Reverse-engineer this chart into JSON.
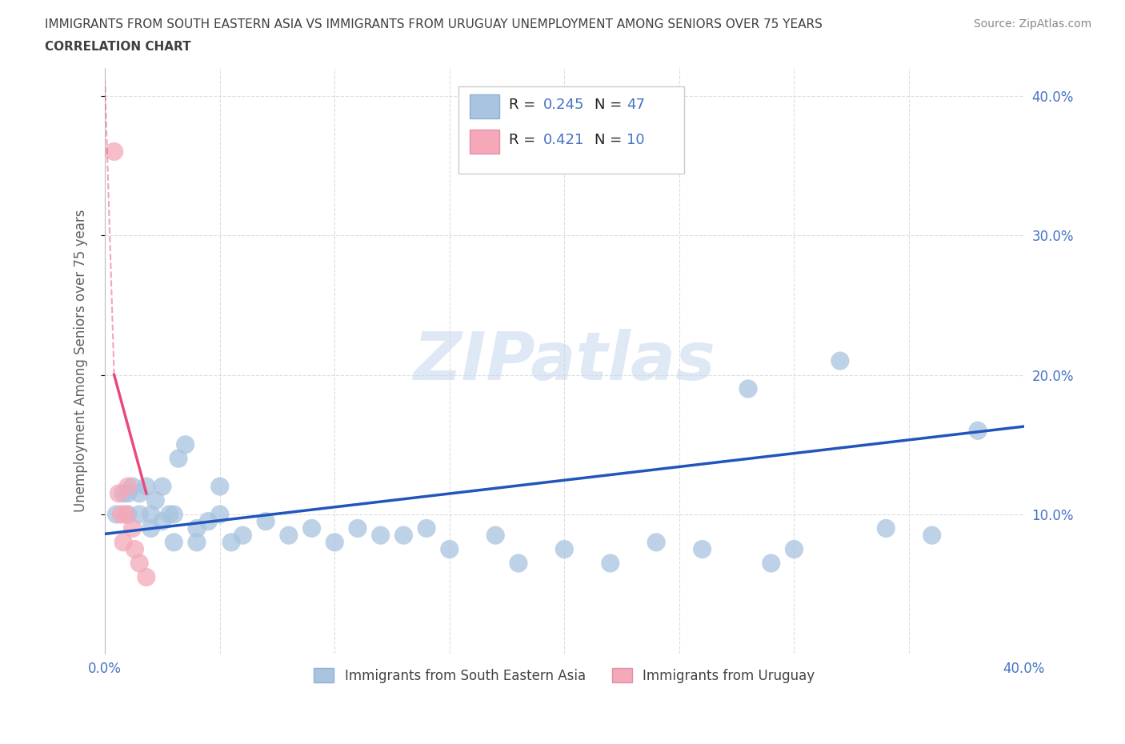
{
  "title_line1": "IMMIGRANTS FROM SOUTH EASTERN ASIA VS IMMIGRANTS FROM URUGUAY UNEMPLOYMENT AMONG SENIORS OVER 75 YEARS",
  "title_line2": "CORRELATION CHART",
  "source": "Source: ZipAtlas.com",
  "ylabel": "Unemployment Among Seniors over 75 years",
  "xlim": [
    0.0,
    0.4
  ],
  "ylim": [
    0.0,
    0.42
  ],
  "color_sea": "#a8c4e0",
  "color_uru": "#f4a8b8",
  "line_color_sea": "#2255bb",
  "line_color_uru": "#e84b7a",
  "scatter_sea_x": [
    0.005,
    0.008,
    0.01,
    0.01,
    0.012,
    0.015,
    0.015,
    0.018,
    0.02,
    0.02,
    0.022,
    0.025,
    0.025,
    0.028,
    0.03,
    0.03,
    0.032,
    0.035,
    0.04,
    0.04,
    0.045,
    0.05,
    0.05,
    0.055,
    0.06,
    0.07,
    0.08,
    0.09,
    0.1,
    0.11,
    0.12,
    0.13,
    0.14,
    0.15,
    0.17,
    0.18,
    0.2,
    0.22,
    0.24,
    0.26,
    0.28,
    0.29,
    0.3,
    0.32,
    0.34,
    0.36,
    0.38
  ],
  "scatter_sea_y": [
    0.1,
    0.115,
    0.115,
    0.1,
    0.12,
    0.115,
    0.1,
    0.12,
    0.1,
    0.09,
    0.11,
    0.12,
    0.095,
    0.1,
    0.1,
    0.08,
    0.14,
    0.15,
    0.08,
    0.09,
    0.095,
    0.1,
    0.12,
    0.08,
    0.085,
    0.095,
    0.085,
    0.09,
    0.08,
    0.09,
    0.085,
    0.085,
    0.09,
    0.075,
    0.085,
    0.065,
    0.075,
    0.065,
    0.08,
    0.075,
    0.19,
    0.065,
    0.075,
    0.21,
    0.09,
    0.085,
    0.16
  ],
  "scatter_uru_x": [
    0.004,
    0.006,
    0.007,
    0.008,
    0.009,
    0.01,
    0.012,
    0.013,
    0.015,
    0.018
  ],
  "scatter_uru_y": [
    0.36,
    0.115,
    0.1,
    0.08,
    0.1,
    0.12,
    0.09,
    0.075,
    0.065,
    0.055
  ],
  "trend_sea_x0": 0.0,
  "trend_sea_y0": 0.086,
  "trend_sea_x1": 0.4,
  "trend_sea_y1": 0.163,
  "trend_uru_solid_x0": 0.004,
  "trend_uru_solid_y0": 0.2,
  "trend_uru_solid_x1": 0.018,
  "trend_uru_solid_y1": 0.115,
  "trend_uru_dashed_x0": 0.004,
  "trend_uru_dashed_y0": 0.2,
  "trend_uru_dashed_x1": 0.0,
  "trend_uru_dashed_y1": 0.41,
  "watermark": "ZIPatlas",
  "bg_color": "#ffffff",
  "grid_color": "#dddddd",
  "title_color": "#404040",
  "axis_label_color": "#606060",
  "tick_color_blue": "#4472c4"
}
